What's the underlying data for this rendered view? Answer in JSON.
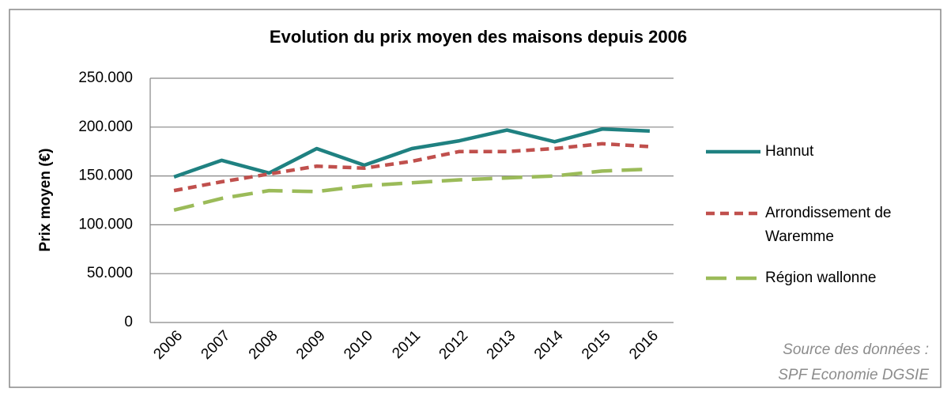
{
  "chart_data": {
    "type": "line",
    "title": "Evolution du prix moyen des maisons depuis 2006",
    "y_label": "Prix moyen (€)",
    "source": [
      "Source des données :",
      "SPF Economie DGSIE"
    ],
    "categories": [
      "2006",
      "2007",
      "2008",
      "2009",
      "2010",
      "2011",
      "2012",
      "2013",
      "2014",
      "2015",
      "2016"
    ],
    "series": [
      {
        "name": "Hannut",
        "color": "#1f8181",
        "dash": "solid",
        "values": [
          149000,
          166000,
          153000,
          178000,
          161000,
          178000,
          186000,
          197000,
          185000,
          198000,
          196000
        ]
      },
      {
        "name": "Arrondissement de Waremme",
        "color": "#c0504d",
        "dash": "dashed",
        "values": [
          135000,
          144000,
          152000,
          160000,
          158000,
          165000,
          175000,
          175000,
          178000,
          183000,
          180000
        ]
      },
      {
        "name": "Région wallonne",
        "color": "#9bbb59",
        "dash": "long-dash",
        "values": [
          115000,
          127000,
          135000,
          134000,
          140000,
          143000,
          146000,
          148000,
          150000,
          155000,
          157000
        ]
      }
    ],
    "ylim": [
      0,
      250000
    ],
    "yticks": [
      0,
      {
        "value": 50000,
        "label": "50.000"
      },
      {
        "value": 100000,
        "label": "100.000"
      },
      {
        "value": 150000,
        "label": "150.000"
      },
      {
        "value": 200000,
        "label": "200.000"
      },
      {
        "value": 250000,
        "label": "250.000"
      }
    ],
    "grid": true,
    "legend": "right"
  }
}
